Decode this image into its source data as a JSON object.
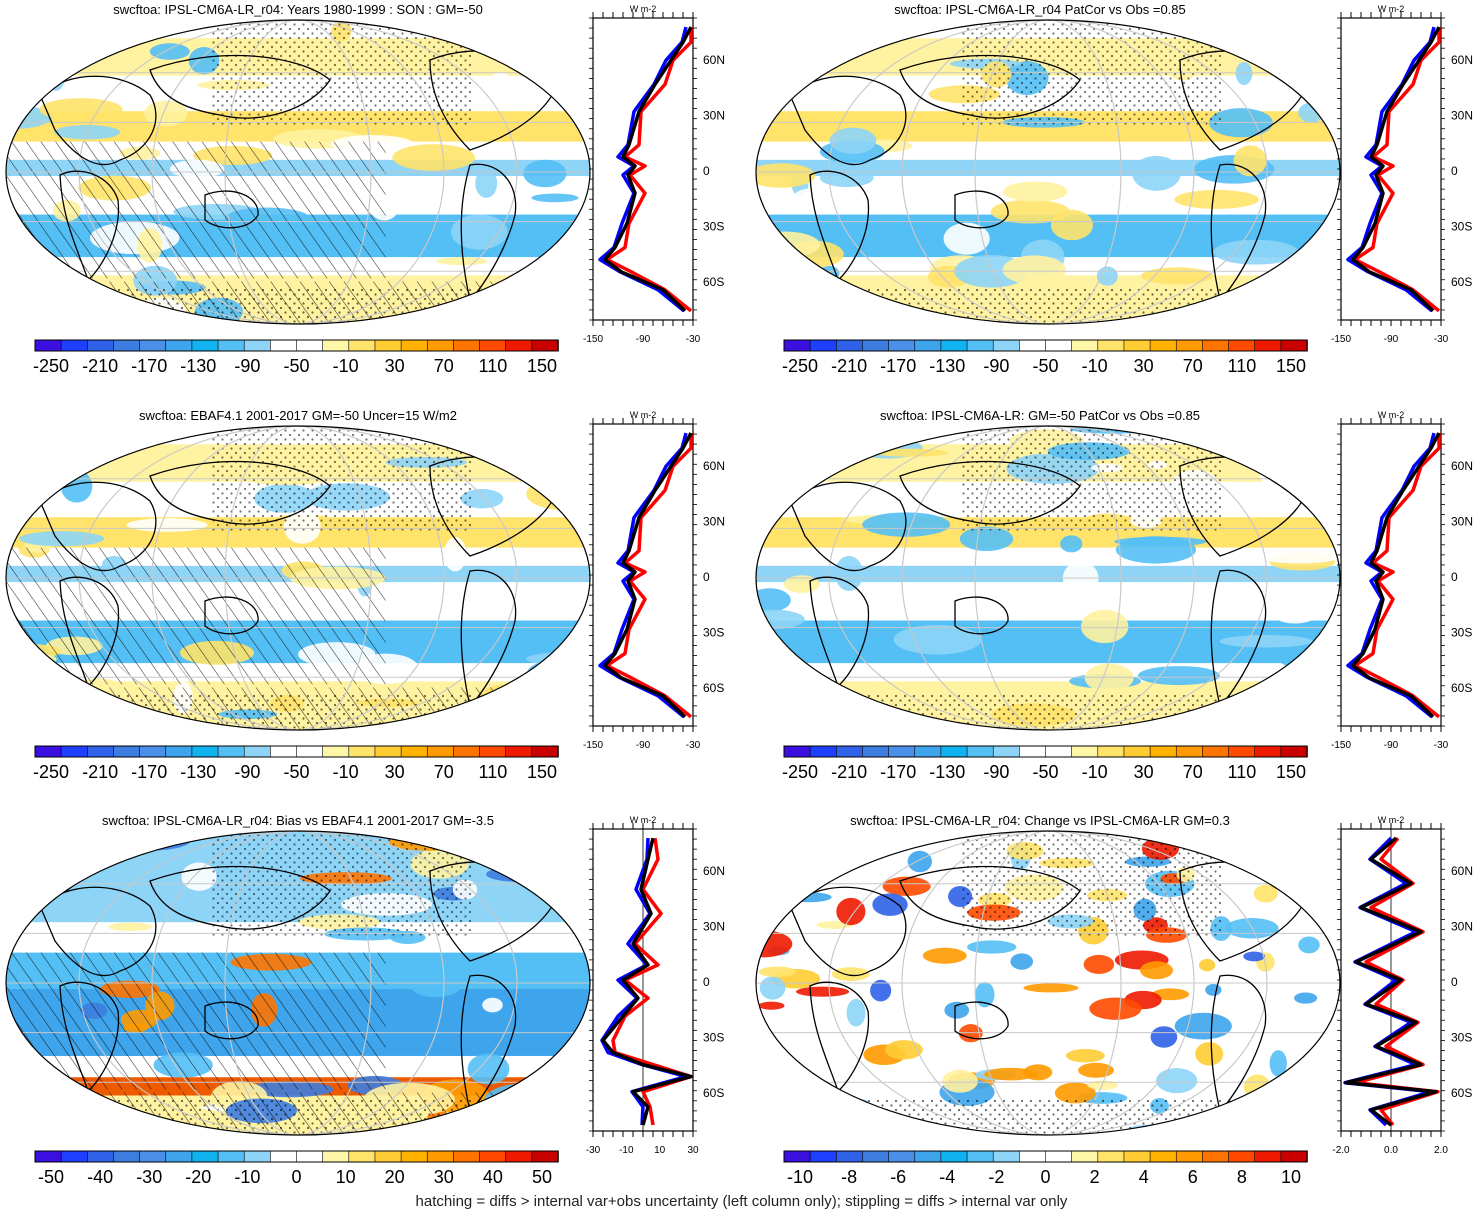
{
  "caption": "hatching = diffs > internal var+obs uncertainty (left column only); stippling = diffs > internal var only",
  "colors": {
    "land_outline": "#000000",
    "grid": "#c8c8c8",
    "zonal_model": "#0000ff",
    "zonal_obs": "#ff0000",
    "zonal_mean": "#000000"
  },
  "colorbar_palette": [
    "#3a0fe0",
    "#1f3fff",
    "#2f62e8",
    "#3d7de0",
    "#4a8fe8",
    "#3ea5ec",
    "#10b2f0",
    "#54bff5",
    "#8dd4f7",
    "#ffffff",
    "#ffffff",
    "#fff7a8",
    "#ffe36a",
    "#ffcc33",
    "#ffb300",
    "#ff9a00",
    "#ff7400",
    "#ff4a00",
    "#ee1a00",
    "#c80000"
  ],
  "chart_data": [
    {
      "type": "heatmap",
      "title": "swcftoa: IPSL-CM6A-LR_r04: Years 1980-1999 : SON : GM=-50",
      "colorbar_labels": [
        "-250",
        "-210",
        "-170",
        "-130",
        "-90",
        "-50",
        "-10",
        "30",
        "70",
        "110",
        "150"
      ],
      "zonal_axis": {
        "xticks": [
          "-150",
          "-90",
          "-30"
        ],
        "yticks": [
          "60N",
          "30N",
          "0",
          "30S",
          "60S"
        ],
        "unit": "W m-2"
      }
    },
    {
      "type": "heatmap",
      "title": "swcftoa: IPSL-CM6A-LR_r04 PatCor vs Obs =0.85",
      "colorbar_labels": [
        "-250",
        "-210",
        "-170",
        "-130",
        "-90",
        "-50",
        "-10",
        "30",
        "70",
        "110",
        "150"
      ],
      "zonal_axis": {
        "xticks": [
          "-150",
          "-90",
          "-30"
        ],
        "yticks": [
          "60N",
          "30N",
          "0",
          "30S",
          "60S"
        ],
        "unit": "W m-2"
      }
    },
    {
      "type": "heatmap",
      "title": "swcftoa: EBAF4.1 2001-2017 GM=-50 Uncer=15 W/m2",
      "colorbar_labels": [
        "-250",
        "-210",
        "-170",
        "-130",
        "-90",
        "-50",
        "-10",
        "30",
        "70",
        "110",
        "150"
      ],
      "zonal_axis": {
        "xticks": [
          "-150",
          "-90",
          "-30"
        ],
        "yticks": [
          "60N",
          "30N",
          "0",
          "30S",
          "60S"
        ],
        "unit": "W m-2"
      }
    },
    {
      "type": "heatmap",
      "title": "swcftoa: IPSL-CM6A-LR: GM=-50 PatCor vs Obs =0.85",
      "colorbar_labels": [
        "-250",
        "-210",
        "-170",
        "-130",
        "-90",
        "-50",
        "-10",
        "30",
        "70",
        "110",
        "150"
      ],
      "zonal_axis": {
        "xticks": [
          "-150",
          "-90",
          "-30"
        ],
        "yticks": [
          "60N",
          "30N",
          "0",
          "30S",
          "60S"
        ],
        "unit": "W m-2"
      }
    },
    {
      "type": "heatmap",
      "title": "swcftoa: IPSL-CM6A-LR_r04: Bias vs EBAF4.1 2001-2017  GM=-3.5",
      "colorbar_labels": [
        "-50",
        "-40",
        "-30",
        "-20",
        "-10",
        "0",
        "10",
        "20",
        "30",
        "40",
        "50"
      ],
      "zonal_axis": {
        "xticks": [
          "-30",
          "-10",
          "10",
          "30"
        ],
        "yticks": [
          "60N",
          "30N",
          "0",
          "30S",
          "60S"
        ],
        "unit": "W m-2"
      }
    },
    {
      "type": "heatmap",
      "title": "swcftoa: IPSL-CM6A-LR_r04: Change vs IPSL-CM6A-LR GM=0.3",
      "colorbar_labels": [
        "-10",
        "-8",
        "-6",
        "-4",
        "-2",
        "0",
        "2",
        "4",
        "6",
        "8",
        "10"
      ],
      "zonal_axis": {
        "xticks": [
          "-2.0",
          "0.0",
          "2.0"
        ],
        "yticks": [
          "60N",
          "30N",
          "0",
          "30S",
          "60S"
        ],
        "unit": "W m-2"
      }
    }
  ]
}
